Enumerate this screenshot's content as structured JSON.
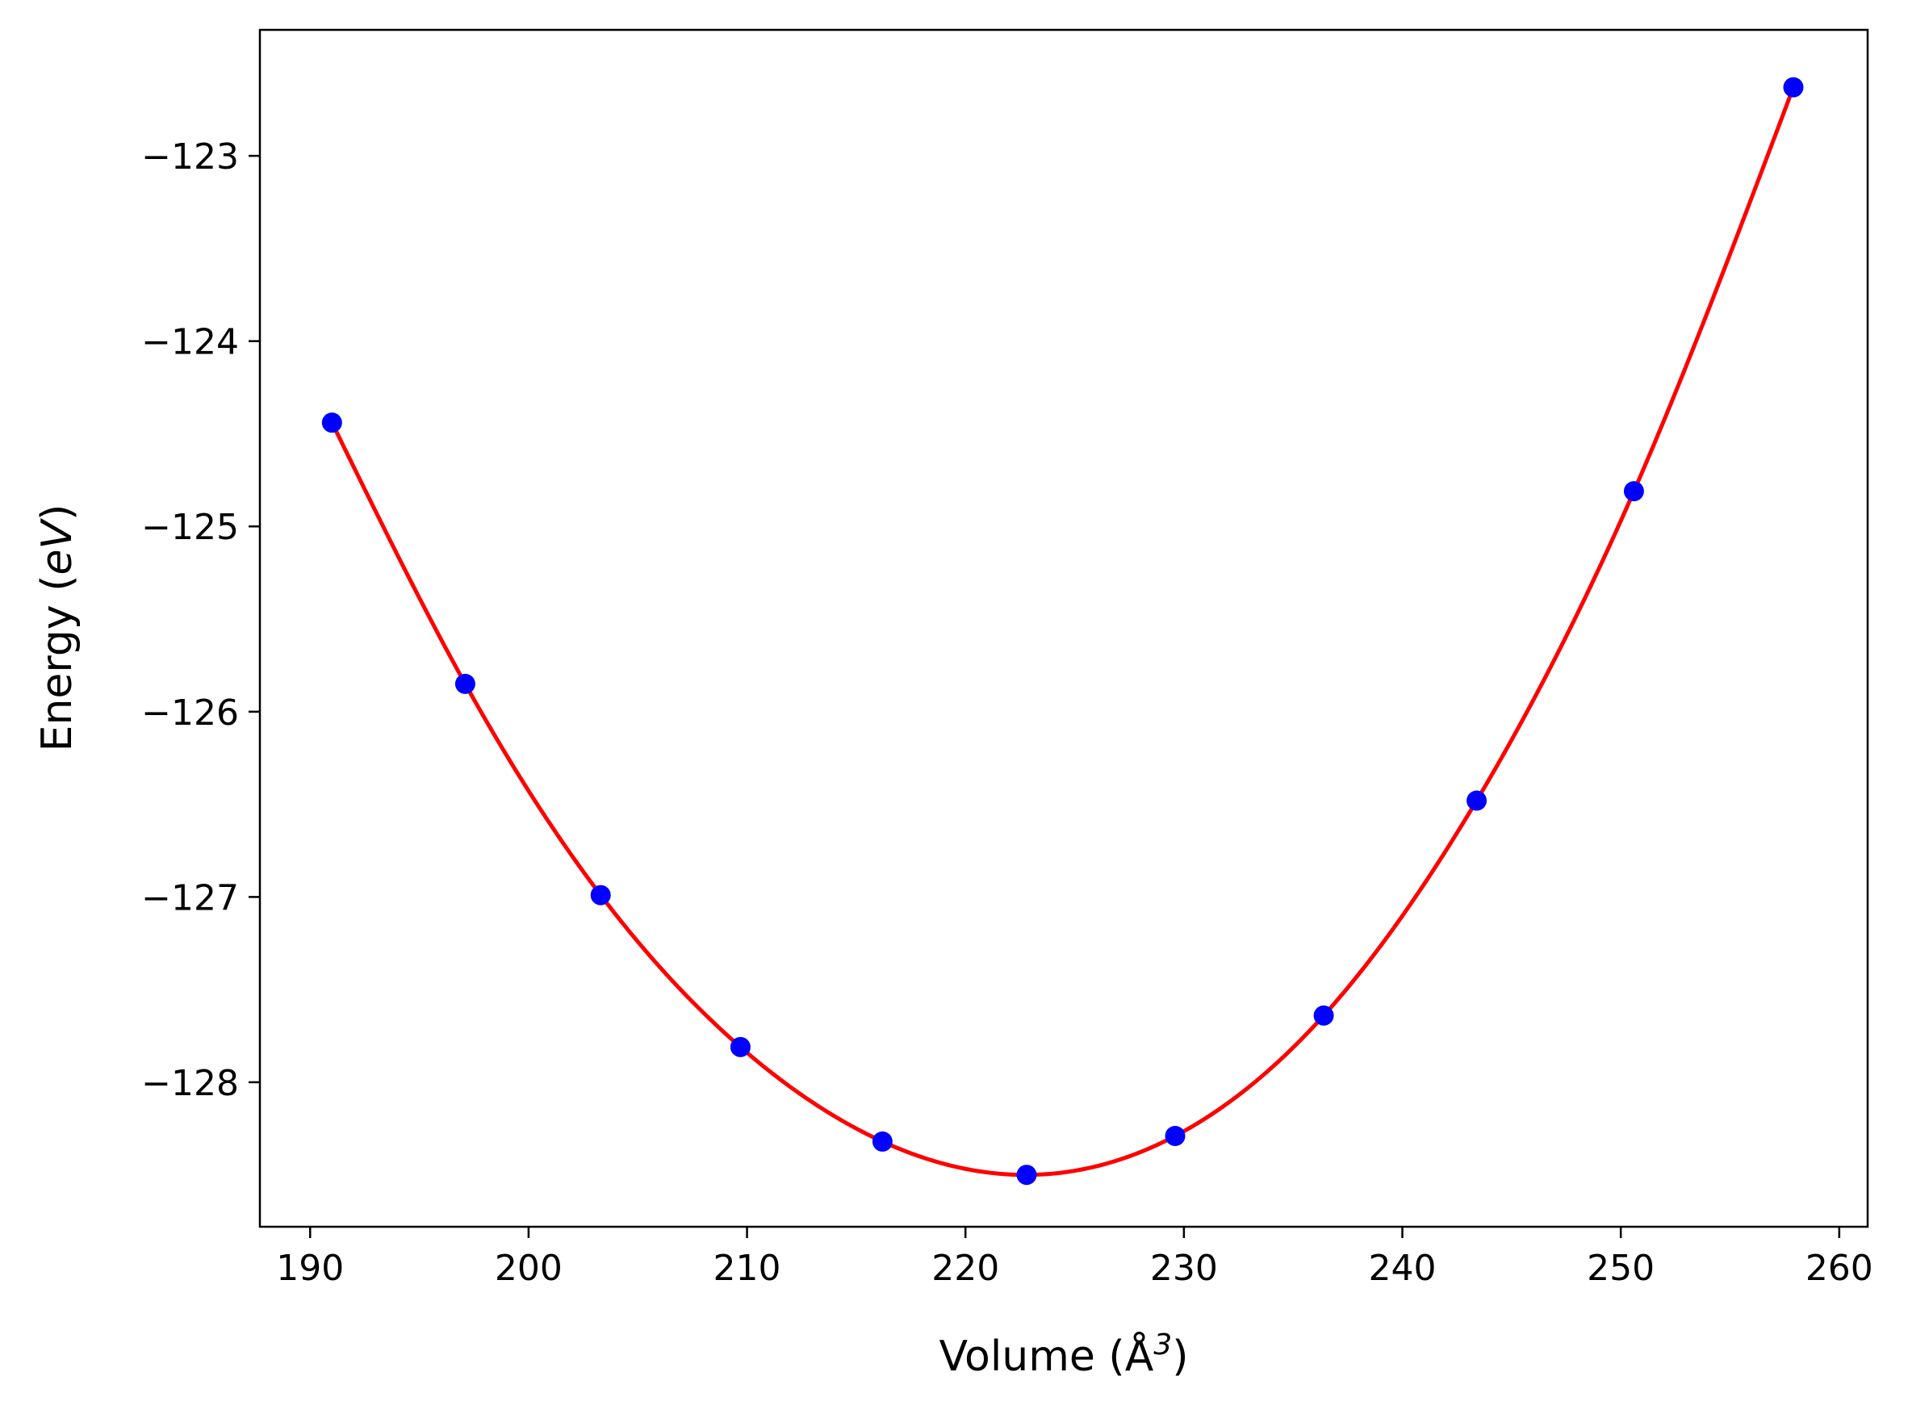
{
  "chart_data": {
    "type": "scatter",
    "xlabel": "Volume (Å",
    "xlabel_sup": "3",
    "xlabel_end": ")",
    "ylabel": "Energy (",
    "ylabel_italic": "eV",
    "ylabel_end": ")",
    "xlim": [
      187.7,
      261.3
    ],
    "ylim": [
      -128.78,
      -122.32
    ],
    "xticks": [
      190,
      200,
      210,
      220,
      230,
      240,
      250,
      260
    ],
    "xtick_labels": [
      "190",
      "200",
      "210",
      "220",
      "230",
      "240",
      "250",
      "260"
    ],
    "yticks": [
      -123,
      -124,
      -125,
      -126,
      -127,
      -128
    ],
    "ytick_labels": [
      "−123",
      "−124",
      "−125",
      "−126",
      "−127",
      "−128"
    ],
    "grid": false,
    "legend": "none",
    "series": [
      {
        "kind": "points",
        "color": "#0000ff",
        "x": [
          191.0,
          197.1,
          203.3,
          209.7,
          216.2,
          222.8,
          229.6,
          236.4,
          243.4,
          250.6,
          257.9
        ],
        "y": [
          -124.44,
          -125.85,
          -126.99,
          -127.81,
          -128.32,
          -128.5,
          -128.29,
          -127.64,
          -126.48,
          -124.81,
          -122.63
        ]
      },
      {
        "kind": "fit-curve",
        "color": "#ff0000",
        "x": [
          191.0,
          197.1,
          203.3,
          209.7,
          216.2,
          222.8,
          229.6,
          236.4,
          243.4,
          250.6,
          257.9
        ],
        "y": [
          -124.44,
          -125.85,
          -126.99,
          -127.81,
          -128.32,
          -128.5,
          -128.29,
          -127.64,
          -126.48,
          -124.81,
          -122.63
        ]
      }
    ]
  }
}
